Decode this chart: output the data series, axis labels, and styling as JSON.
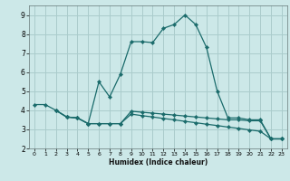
{
  "xlabel": "Humidex (Indice chaleur)",
  "bg_color": "#cce8e8",
  "grid_color": "#aacccc",
  "line_color": "#1a6b6b",
  "xlim": [
    -0.5,
    23.5
  ],
  "ylim": [
    2.0,
    9.5
  ],
  "xticks": [
    0,
    1,
    2,
    3,
    4,
    5,
    6,
    7,
    8,
    9,
    10,
    11,
    12,
    13,
    14,
    15,
    16,
    17,
    18,
    19,
    20,
    21,
    22,
    23
  ],
  "yticks": [
    2,
    3,
    4,
    5,
    6,
    7,
    8,
    9
  ],
  "series1_x": [
    0,
    1,
    2,
    3,
    4,
    5,
    6,
    7,
    8,
    9,
    10,
    11,
    12,
    13,
    14,
    15,
    16,
    17,
    18,
    19,
    20,
    21,
    22,
    23
  ],
  "series1_y": [
    4.3,
    4.3,
    4.0,
    3.65,
    3.6,
    3.3,
    5.5,
    4.7,
    5.9,
    7.6,
    7.6,
    7.55,
    8.3,
    8.5,
    9.0,
    8.5,
    7.3,
    5.0,
    3.6,
    3.6,
    3.5,
    3.5,
    2.5,
    2.5
  ],
  "series2_x": [
    2,
    3,
    4,
    5,
    6,
    7,
    8,
    9,
    10,
    11,
    12,
    13,
    14,
    15,
    16,
    17,
    18,
    19,
    20,
    21,
    22,
    23
  ],
  "series2_y": [
    4.0,
    3.65,
    3.6,
    3.3,
    3.3,
    3.3,
    3.3,
    3.95,
    3.9,
    3.85,
    3.8,
    3.75,
    3.7,
    3.65,
    3.6,
    3.55,
    3.5,
    3.5,
    3.45,
    3.45,
    2.5,
    2.5
  ],
  "series3_x": [
    2,
    3,
    4,
    5,
    6,
    7,
    8,
    9,
    10,
    11,
    12,
    13,
    14,
    15,
    16,
    17,
    18,
    19,
    20,
    21,
    22,
    23
  ],
  "series3_y": [
    4.0,
    3.65,
    3.6,
    3.3,
    3.3,
    3.3,
    3.3,
    3.8,
    3.72,
    3.65,
    3.57,
    3.5,
    3.42,
    3.35,
    3.27,
    3.2,
    3.12,
    3.05,
    2.97,
    2.9,
    2.5,
    2.5
  ]
}
